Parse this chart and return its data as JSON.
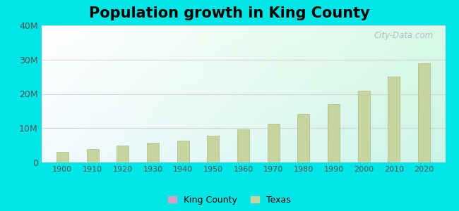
{
  "title": "Population growth in King County",
  "title_fontsize": 15,
  "title_fontweight": "bold",
  "background_color": "#00e5e5",
  "years": [
    1900,
    1910,
    1920,
    1930,
    1940,
    1950,
    1960,
    1970,
    1980,
    1990,
    2000,
    2010,
    2020
  ],
  "texas_pop": [
    3050000,
    3900000,
    4900000,
    5820000,
    6410000,
    7710000,
    9580000,
    11200000,
    14230000,
    16990000,
    20900000,
    25100000,
    29000000
  ],
  "bar_color": "#c8d4a0",
  "bar_edge_color": "#aaba80",
  "bar_width": 4.0,
  "ylim": [
    0,
    40000000
  ],
  "yticks": [
    0,
    10000000,
    20000000,
    30000000,
    40000000
  ],
  "ytick_labels": [
    "0",
    "10M",
    "20M",
    "30M",
    "40M"
  ],
  "grid_color": "#ddc0cc",
  "grid_alpha": 0.7,
  "watermark": "City-Data.com",
  "watermark_color": "#a8b4c4",
  "legend_king_color": "#d4a0c8",
  "legend_texas_color": "#c8d4a0",
  "xlim_left": 1893,
  "xlim_right": 2027
}
